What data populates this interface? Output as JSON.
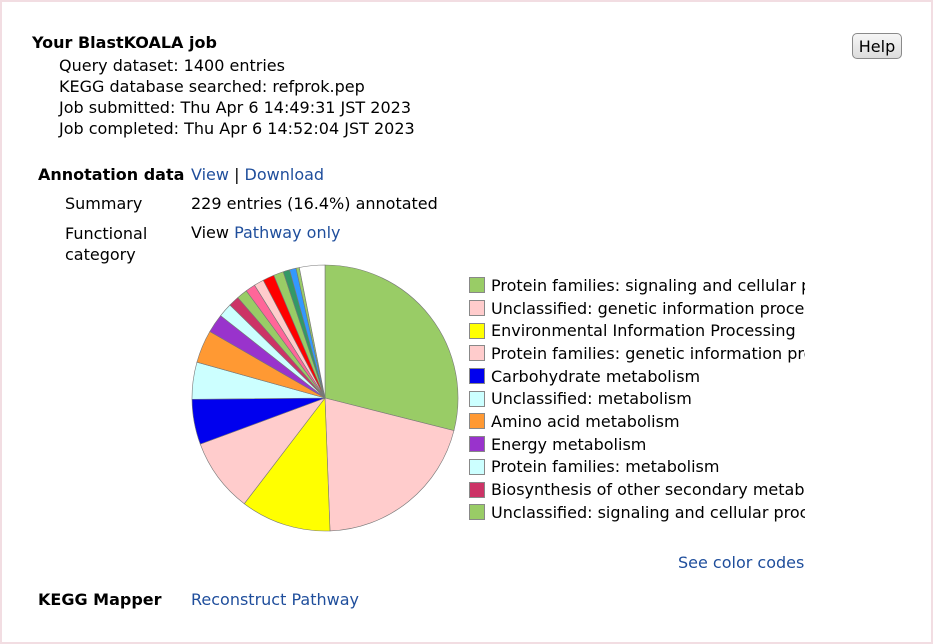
{
  "job": {
    "title": "Your BlastKOALA job",
    "lines": [
      "Query dataset: 1400 entries",
      "KEGG database searched: refprok.pep",
      "Job submitted: Thu Apr 6 14:49:31 JST 2023",
      "Job completed: Thu Apr 6 14:52:04 JST 2023"
    ]
  },
  "help_label": "Help",
  "annotation": {
    "label": "Annotation data",
    "view_link": "View",
    "separator": "|",
    "download_link": "Download",
    "summary_label": "Summary",
    "summary_value": "229 entries (16.4%) annotated",
    "functional_label_1": "Functional",
    "functional_label_2": "category",
    "view_prefix": "View",
    "pathway_link": "Pathway only"
  },
  "see_color_codes": "See color codes",
  "mapper": {
    "label": "KEGG Mapper",
    "link": "Reconstruct Pathway"
  },
  "chart_data": {
    "type": "pie",
    "slices": [
      {
        "value": 29.0,
        "color": "#99cc66"
      },
      {
        "value": 20.5,
        "color": "#ffcccc"
      },
      {
        "value": 11.0,
        "color": "#ffff00"
      },
      {
        "value": 9.0,
        "color": "#ffcccc"
      },
      {
        "value": 5.5,
        "color": "#0000ee"
      },
      {
        "value": 4.5,
        "color": "#ccffff"
      },
      {
        "value": 4.0,
        "color": "#ff9933"
      },
      {
        "value": 2.3,
        "color": "#9933cc"
      },
      {
        "value": 1.7,
        "color": "#ccffff"
      },
      {
        "value": 1.3,
        "color": "#cc3366"
      },
      {
        "value": 1.3,
        "color": "#99cc66"
      },
      {
        "value": 1.2,
        "color": "#ff6699"
      },
      {
        "value": 1.2,
        "color": "#ffcccc"
      },
      {
        "value": 1.4,
        "color": "#ff0000"
      },
      {
        "value": 1.2,
        "color": "#99cc66"
      },
      {
        "value": 0.8,
        "color": "#339966"
      },
      {
        "value": 0.8,
        "color": "#3399ff"
      },
      {
        "value": 0.4,
        "color": "#99cc66"
      },
      {
        "value": 3.1,
        "color": "#ffffff"
      }
    ],
    "legend": [
      {
        "label": "Protein families: signaling and cellular processes",
        "color": "#99cc66"
      },
      {
        "label": "Unclassified: genetic information processing",
        "color": "#ffcccc"
      },
      {
        "label": "Environmental Information Processing",
        "color": "#ffff00"
      },
      {
        "label": "Protein families: genetic information processing",
        "color": "#ffcccc"
      },
      {
        "label": "Carbohydrate metabolism",
        "color": "#0000ee"
      },
      {
        "label": "Unclassified: metabolism",
        "color": "#ccffff"
      },
      {
        "label": "Amino acid metabolism",
        "color": "#ff9933"
      },
      {
        "label": "Energy metabolism",
        "color": "#9933cc"
      },
      {
        "label": "Protein families: metabolism",
        "color": "#ccffff"
      },
      {
        "label": "Biosynthesis of other secondary metabolites",
        "color": "#cc3366"
      },
      {
        "label": "Unclassified: signaling and cellular processes",
        "color": "#99cc66"
      }
    ]
  }
}
